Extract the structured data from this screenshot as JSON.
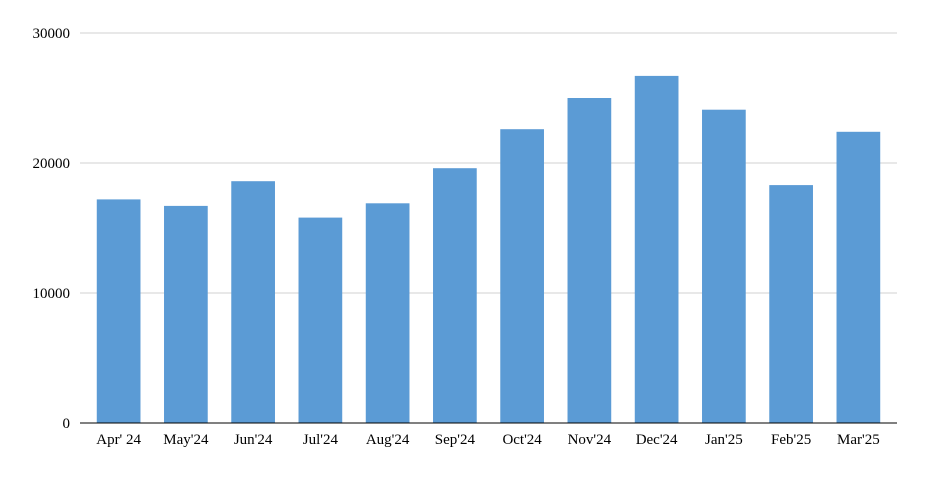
{
  "chart_data": {
    "type": "bar",
    "title": "",
    "xlabel": "",
    "ylabel": "",
    "categories": [
      "Apr' 24",
      "May'24",
      "Jun'24",
      "Jul'24",
      "Aug'24",
      "Sep'24",
      "Oct'24",
      "Nov'24",
      "Dec'24",
      "Jan'25",
      "Feb'25",
      "Mar'25"
    ],
    "values": [
      17200,
      16700,
      18600,
      15800,
      16900,
      19600,
      22600,
      25000,
      26700,
      24100,
      18300,
      22400
    ],
    "ylim": [
      0,
      30000
    ],
    "yticks": [
      "0",
      "10000",
      "20000",
      "30000"
    ],
    "grid": true,
    "legend": "none",
    "bar_color": "#5b9bd5",
    "grid_color": "#d0d0d0"
  }
}
